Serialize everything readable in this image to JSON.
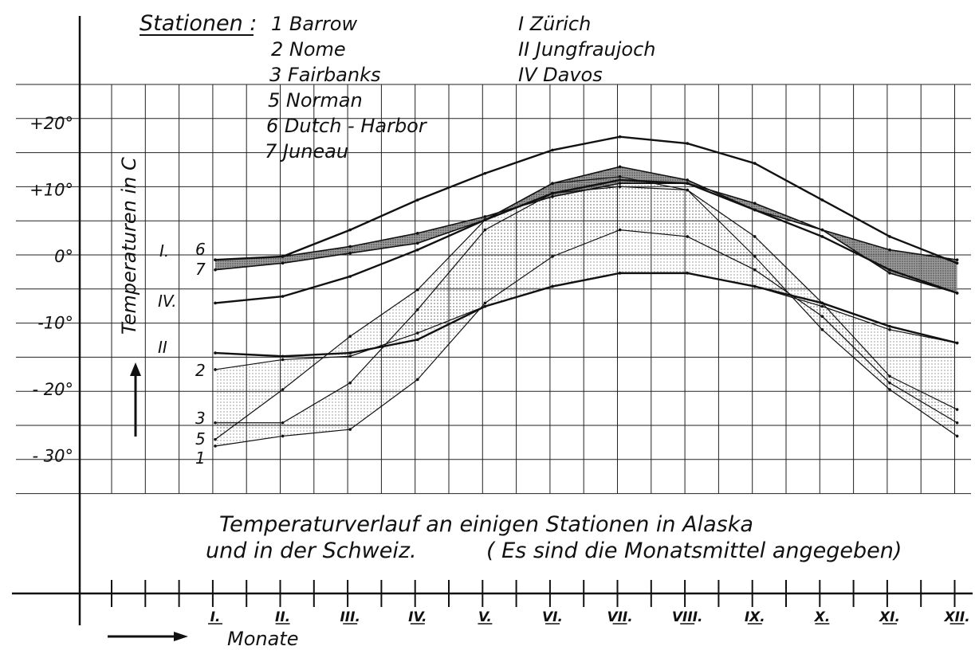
{
  "chart_data": {
    "type": "line",
    "title": "Temperaturverlauf an einigen Stationen in Alaska",
    "subtitle": "und in der Schweiz.",
    "note": "( Es sind die Monatsmittel angegeben)",
    "xlabel": "Monate",
    "ylabel": "Temperaturen in C",
    "legend_title": "Stationen :",
    "categories": [
      "I.",
      "II.",
      "III.",
      "IV.",
      "V.",
      "VI.",
      "VII.",
      "VIII.",
      "IX.",
      "X.",
      "XI.",
      "XII."
    ],
    "yticks": [
      {
        "value": 20,
        "label": "+20°"
      },
      {
        "value": 10,
        "label": "+10°"
      },
      {
        "value": 0,
        "label": "0°"
      },
      {
        "value": -10,
        "label": "-10°"
      },
      {
        "value": -20,
        "label": "- 20°"
      },
      {
        "value": -30,
        "label": "- 30°"
      }
    ],
    "ylim": [
      -35,
      35
    ],
    "grid": true,
    "legend_placement": "top",
    "series": [
      {
        "legend": "1 Barrow",
        "label": "1",
        "values": [
          -28.5,
          -27,
          -26,
          -18.5,
          -7,
          0,
          4,
          3,
          -2,
          -9,
          -19,
          -25
        ]
      },
      {
        "legend": "2 Nome",
        "label": "2",
        "values": [
          -17,
          -15.5,
          -15,
          -11.5,
          -7.5,
          -4.5,
          -2.5,
          -2.5,
          -4.5,
          -7.5,
          -11,
          -13
        ]
      },
      {
        "legend": "3 Fairbanks",
        "label": "3",
        "values": [
          -25,
          -25,
          -19,
          -8,
          4,
          9.5,
          10.5,
          10,
          3,
          -7,
          -18,
          -23
        ]
      },
      {
        "legend": "5 Norman",
        "label": "5",
        "values": [
          -27.5,
          -20,
          -12,
          -5,
          5.5,
          11,
          12,
          10,
          0,
          -11,
          -20,
          -27
        ]
      },
      {
        "legend": "6 Dutch - Harbor",
        "label": "6",
        "values": [
          -0.5,
          0,
          1.5,
          3.5,
          6,
          9,
          11,
          11,
          8,
          4,
          1,
          -0.5
        ]
      },
      {
        "legend": "7 Juneau",
        "label": "7",
        "values": [
          -2,
          -1,
          0.5,
          2,
          5.5,
          11,
          13.5,
          11.5,
          7,
          4,
          -2.5,
          -5.5
        ]
      },
      {
        "legend": "I Zürich",
        "label": "I.",
        "values": [
          -0.5,
          0,
          4,
          8.5,
          12.5,
          16,
          18,
          17,
          14,
          8.5,
          3,
          -1
        ]
      },
      {
        "legend": "II Jungfraujoch",
        "label": "II",
        "values": [
          -14.5,
          -15,
          -14.5,
          -12.5,
          -7.5,
          -4.5,
          -2.5,
          -2.5,
          -4.5,
          -7,
          -10.5,
          -13
        ]
      },
      {
        "legend": "IV Davos",
        "label": "IV.",
        "values": [
          -7,
          -6,
          -3,
          1,
          5.5,
          9.5,
          11.5,
          11,
          7,
          3,
          -2,
          -5.5
        ]
      }
    ],
    "shaded_bands": [
      {
        "between": [
          "6 Dutch - Harbor",
          "7 Juneau"
        ],
        "pattern": "dense"
      },
      {
        "between": [
          "1 Barrow",
          "3 Fairbanks"
        ],
        "pattern": "light"
      },
      {
        "between": [
          "2 Nome",
          "5 Norman"
        ],
        "pattern": "light"
      }
    ]
  }
}
